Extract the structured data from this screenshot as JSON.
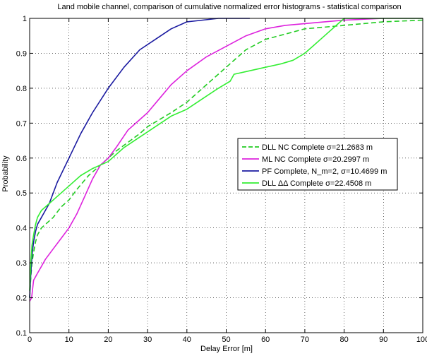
{
  "chart_data": {
    "type": "line",
    "title": "Land mobile channel, comparison of cumulative normalized error histograms - statistical comparison",
    "xlabel": "Delay Error [m]",
    "ylabel": "Probability",
    "xlim": [
      0,
      100
    ],
    "ylim": [
      0.1,
      1
    ],
    "xticks": [
      "0",
      "10",
      "20",
      "30",
      "40",
      "50",
      "60",
      "70",
      "80",
      "90",
      "100"
    ],
    "yticks": [
      "0.1",
      "0.2",
      "0.3",
      "0.4",
      "0.5",
      "0.6",
      "0.7",
      "0.8",
      "0.9",
      "1"
    ],
    "grid": true,
    "legend_position": "right",
    "series": [
      {
        "name": "DLL NC Complete σ=21.2683 m",
        "color": "#22cc22",
        "dash": "dashed",
        "x": [
          0,
          0.3,
          0.6,
          1,
          1.5,
          2,
          3,
          4,
          5,
          6,
          8,
          10,
          12,
          15,
          18,
          20,
          22,
          25,
          28,
          30,
          33,
          36,
          40,
          45,
          50,
          55,
          60,
          65,
          70,
          75,
          80,
          90,
          100
        ],
        "y": [
          0.2,
          0.26,
          0.3,
          0.33,
          0.36,
          0.38,
          0.4,
          0.41,
          0.42,
          0.43,
          0.46,
          0.48,
          0.51,
          0.55,
          0.58,
          0.6,
          0.62,
          0.645,
          0.67,
          0.69,
          0.71,
          0.73,
          0.76,
          0.81,
          0.86,
          0.91,
          0.94,
          0.955,
          0.97,
          0.975,
          0.98,
          0.99,
          0.995
        ]
      },
      {
        "name": "ML NC Complete σ=20.2997 m",
        "color": "#dd22dd",
        "dash": "solid",
        "x": [
          0,
          0.5,
          1,
          2,
          3,
          4,
          6,
          8,
          10,
          12,
          14,
          16,
          18,
          20,
          22,
          25,
          28,
          30,
          33,
          36,
          40,
          45,
          50,
          55,
          60,
          65,
          70,
          75,
          80,
          90,
          100
        ],
        "y": [
          0.19,
          0.2,
          0.25,
          0.27,
          0.29,
          0.31,
          0.34,
          0.37,
          0.4,
          0.44,
          0.49,
          0.54,
          0.58,
          0.6,
          0.63,
          0.68,
          0.71,
          0.73,
          0.77,
          0.81,
          0.85,
          0.89,
          0.92,
          0.95,
          0.97,
          0.98,
          0.985,
          0.99,
          0.995,
          1.0,
          1.0
        ]
      },
      {
        "name": "PF Complete, N_m=2, σ=10.4699 m",
        "color": "#1a1aa0",
        "dash": "solid",
        "x": [
          0,
          0.3,
          0.6,
          1,
          1.5,
          2,
          3,
          4,
          5,
          7,
          10,
          13,
          16,
          20,
          24,
          28,
          32,
          36,
          40,
          44,
          48,
          52,
          56
        ],
        "y": [
          0.2,
          0.27,
          0.32,
          0.36,
          0.39,
          0.41,
          0.43,
          0.45,
          0.47,
          0.53,
          0.6,
          0.67,
          0.73,
          0.8,
          0.86,
          0.91,
          0.94,
          0.97,
          0.99,
          0.995,
          1.0,
          1.0,
          1.0
        ]
      },
      {
        "name": "DLL ΔΔ Complete σ=22.4508 m",
        "color": "#33ee33",
        "dash": "solid",
        "x": [
          0,
          0.3,
          0.6,
          1,
          1.5,
          2,
          3,
          4,
          5,
          7,
          10,
          13,
          16,
          20,
          24,
          28,
          32,
          36,
          40,
          44,
          48,
          51,
          52,
          56,
          60,
          64,
          67,
          70,
          72,
          74,
          76,
          78,
          80,
          85,
          90,
          100
        ],
        "y": [
          0.22,
          0.3,
          0.35,
          0.38,
          0.41,
          0.43,
          0.45,
          0.46,
          0.47,
          0.49,
          0.52,
          0.55,
          0.57,
          0.59,
          0.63,
          0.66,
          0.69,
          0.72,
          0.74,
          0.77,
          0.8,
          0.82,
          0.84,
          0.85,
          0.86,
          0.87,
          0.88,
          0.9,
          0.92,
          0.94,
          0.96,
          0.98,
          1.0,
          1.0,
          1.0,
          1.0
        ]
      }
    ]
  }
}
